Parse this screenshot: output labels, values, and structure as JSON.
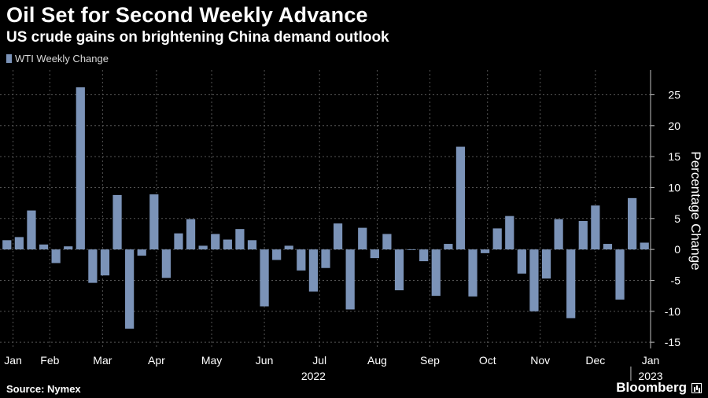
{
  "header": {
    "title": "Oil Set for Second Weekly Advance",
    "subtitle": "US crude gains on brightening China demand outlook"
  },
  "footer": {
    "source": "Source: Nymex",
    "brand": "Bloomberg"
  },
  "colors": {
    "bar": "#7b93b8",
    "background": "#000000",
    "grid": "#555555"
  },
  "chart_data": {
    "type": "bar",
    "legend": [
      "WTI Weekly Change"
    ],
    "legend_placement": "top-left",
    "ylabel": "Percentage Change",
    "ylim": [
      -16,
      29
    ],
    "yticks": [
      -15,
      -10,
      -5,
      0,
      5,
      10,
      15,
      20,
      25
    ],
    "grid": true,
    "month_ticks": [
      {
        "label": "Jan",
        "index": 0.5
      },
      {
        "label": "Feb",
        "index": 3.5
      },
      {
        "label": "Mar",
        "index": 7.8
      },
      {
        "label": "Apr",
        "index": 12.2
      },
      {
        "label": "May",
        "index": 16.7
      },
      {
        "label": "Jun",
        "index": 21.0
      },
      {
        "label": "Jul",
        "index": 25.5
      },
      {
        "label": "Aug",
        "index": 30.2
      },
      {
        "label": "Sep",
        "index": 34.5
      },
      {
        "label": "Oct",
        "index": 39.2
      },
      {
        "label": "Nov",
        "index": 43.5
      },
      {
        "label": "Dec",
        "index": 48.0
      },
      {
        "label": "Jan",
        "index": 52.5
      }
    ],
    "year_labels": [
      {
        "label": "2022",
        "index": 25.0
      },
      {
        "label": "2023",
        "index": 52.5
      }
    ],
    "series": [
      {
        "name": "WTI Weekly Change",
        "values": [
          1.5,
          2.0,
          6.3,
          0.8,
          -2.2,
          0.5,
          26.2,
          -5.4,
          -4.2,
          8.8,
          -12.8,
          -1.0,
          8.9,
          -4.6,
          2.6,
          4.9,
          0.6,
          2.5,
          1.6,
          3.3,
          1.5,
          -9.2,
          -1.7,
          0.6,
          -3.4,
          -6.8,
          -3.0,
          4.2,
          -9.7,
          3.5,
          -1.4,
          2.5,
          -6.6,
          -0.1,
          -1.9,
          -7.5,
          0.9,
          16.6,
          -7.6,
          -0.6,
          3.4,
          5.4,
          -3.9,
          -10.0,
          -4.7,
          4.9,
          -11.1,
          4.6,
          7.1,
          0.9,
          -8.1,
          8.3,
          1.1
        ]
      }
    ]
  }
}
